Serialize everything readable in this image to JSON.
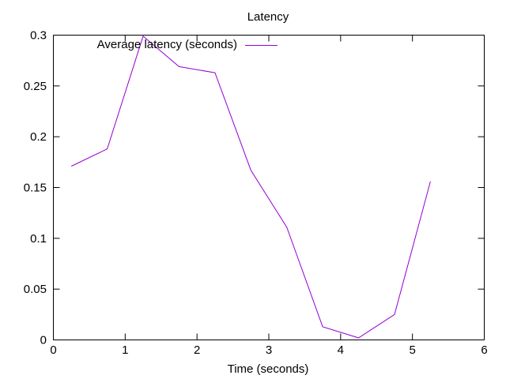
{
  "chart_data": {
    "type": "line",
    "title": "Latency",
    "xlabel": "Time (seconds)",
    "ylabel": "",
    "xlim": [
      0,
      6
    ],
    "ylim": [
      0,
      0.3
    ],
    "x_ticks": [
      "0",
      "1",
      "2",
      "3",
      "4",
      "5",
      "6"
    ],
    "y_ticks": [
      "0",
      "0.05",
      "0.1",
      "0.15",
      "0.2",
      "0.25",
      "0.3"
    ],
    "grid": false,
    "legend_position": "top-left-inside",
    "series": [
      {
        "name": "Average latency (seconds)",
        "color": "#9400d3",
        "x": [
          0.25,
          0.75,
          1.25,
          1.75,
          2.25,
          2.75,
          3.25,
          3.75,
          4.25,
          4.75,
          5.25
        ],
        "values": [
          0.171,
          0.188,
          0.299,
          0.269,
          0.263,
          0.167,
          0.111,
          0.013,
          0.002,
          0.025,
          0.156
        ]
      }
    ]
  }
}
